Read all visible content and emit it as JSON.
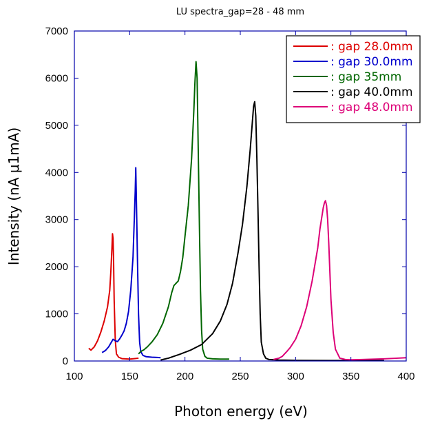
{
  "chart_data": {
    "type": "line",
    "title": "LU spectra_gap=28 - 48 mm",
    "xlabel": "Photon energy (eV)",
    "ylabel": "Intensity (nA μ1mA)",
    "xlim": [
      100,
      400
    ],
    "ylim": [
      0,
      7000
    ],
    "xticks": [
      100,
      150,
      200,
      250,
      300,
      350,
      400
    ],
    "yticks": [
      0,
      1000,
      2000,
      3000,
      4000,
      5000,
      6000,
      7000
    ],
    "grid": false,
    "legend_position": "top-right",
    "series": [
      {
        "name": ": gap 28.0mm",
        "color": "#dd0000",
        "x": [
          113,
          115,
          118,
          121,
          124,
          127,
          130,
          132,
          133,
          134,
          134.5,
          135,
          135.5,
          136,
          137,
          138,
          140,
          143,
          146,
          150,
          154,
          158
        ],
        "y": [
          270,
          230,
          300,
          430,
          620,
          850,
          1150,
          1500,
          1900,
          2400,
          2700,
          2600,
          2100,
          1300,
          450,
          150,
          80,
          50,
          45,
          40,
          50,
          60
        ]
      },
      {
        "name": ": gap 30.0mm",
        "color": "#0000cc",
        "x": [
          125,
          128,
          131,
          133,
          135,
          137,
          139,
          141,
          143,
          145,
          147,
          149,
          151,
          153,
          154,
          155,
          155.5,
          156,
          157,
          158,
          159,
          160,
          162,
          165,
          170,
          175,
          178
        ],
        "y": [
          180,
          220,
          300,
          380,
          460,
          430,
          410,
          470,
          550,
          640,
          800,
          1050,
          1500,
          2200,
          2900,
          3600,
          4100,
          3500,
          2200,
          1000,
          400,
          200,
          120,
          90,
          80,
          75,
          70
        ]
      },
      {
        "name": ": gap 35mm",
        "color": "#006600",
        "x": [
          158,
          160,
          163,
          166,
          170,
          175,
          180,
          185,
          188,
          190,
          192,
          194,
          196,
          198,
          200,
          203,
          206,
          208,
          209,
          210,
          211,
          212,
          213,
          214,
          215,
          216,
          218,
          220,
          225,
          232,
          240
        ],
        "y": [
          150,
          200,
          240,
          300,
          400,
          560,
          800,
          1150,
          1450,
          1600,
          1650,
          1700,
          1900,
          2200,
          2650,
          3300,
          4300,
          5300,
          5900,
          6350,
          6000,
          4500,
          2900,
          1500,
          650,
          250,
          100,
          60,
          45,
          40,
          40
        ]
      },
      {
        "name": ": gap 40.0mm",
        "color": "#000000",
        "x": [
          178,
          185,
          195,
          205,
          215,
          225,
          232,
          238,
          243,
          248,
          252,
          256,
          259,
          261,
          262,
          263,
          264,
          265,
          266,
          267,
          268,
          269,
          271,
          273,
          276,
          285,
          300,
          330,
          360,
          380
        ],
        "y": [
          20,
          60,
          140,
          230,
          350,
          580,
          850,
          1200,
          1650,
          2300,
          2900,
          3700,
          4500,
          5100,
          5400,
          5500,
          5200,
          4300,
          3200,
          2000,
          1000,
          400,
          150,
          60,
          30,
          20,
          15,
          10,
          10,
          10
        ]
      },
      {
        "name": ": gap 48.0mm",
        "color": "#dd0077",
        "x": [
          280,
          285,
          288,
          290,
          292,
          295,
          300,
          305,
          310,
          315,
          320,
          322,
          324,
          325,
          326,
          327,
          328,
          329,
          330,
          331,
          332,
          334,
          336,
          340,
          345,
          350,
          360,
          380,
          400
        ],
        "y": [
          30,
          60,
          100,
          150,
          200,
          280,
          460,
          750,
          1150,
          1700,
          2400,
          2800,
          3100,
          3250,
          3350,
          3400,
          3300,
          3000,
          2500,
          1900,
          1300,
          600,
          250,
          60,
          30,
          25,
          30,
          45,
          70
        ]
      }
    ]
  }
}
